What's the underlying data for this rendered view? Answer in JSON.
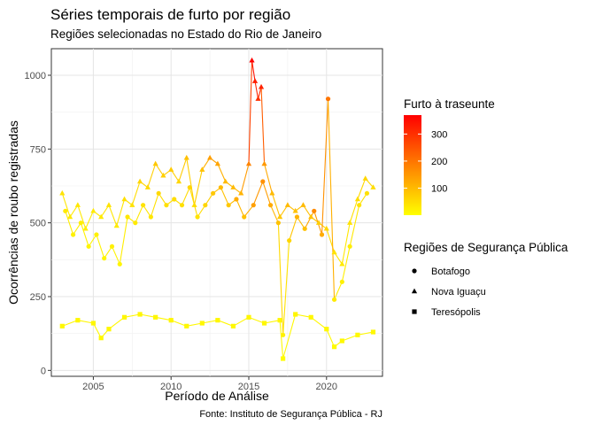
{
  "chart_data": {
    "type": "scatter",
    "title": "Séries temporais de furto por região",
    "subtitle": "Regiões selecionadas no Estado do Rio de Janeiro",
    "xlabel": "Período de Análise",
    "ylabel": "Ocorrências de roubo registradas",
    "caption": "Fonte: Instituto de Segurança Pública - RJ",
    "xlim": [
      2002.3,
      2023.6
    ],
    "ylim": [
      -20,
      1090
    ],
    "x_ticks": [
      "2005",
      "2010",
      "2015",
      "2020"
    ],
    "x_tick_values": [
      2005,
      2010,
      2015,
      2020
    ],
    "y_ticks": [
      "0",
      "250",
      "500",
      "750",
      "1000"
    ],
    "y_tick_values": [
      0,
      250,
      500,
      750,
      1000
    ],
    "grid": true,
    "color_legend": {
      "title": "Furto à traseunte",
      "ticks": [
        "100",
        "200",
        "300"
      ],
      "tick_values": [
        100,
        200,
        300
      ],
      "range": [
        0,
        370
      ],
      "low_color": "#FFFF00",
      "high_color": "#FF0000"
    },
    "shape_legend": {
      "title": "Regiões de Segurança Pública",
      "items": [
        {
          "label": "Botafogo",
          "shape": "circle"
        },
        {
          "label": "Nova Iguaçu",
          "shape": "triangle"
        },
        {
          "label": "Teresópolis",
          "shape": "square"
        }
      ]
    },
    "series": [
      {
        "name": "Nova Iguaçu",
        "shape": "triangle",
        "x": [
          2003.0,
          2003.5,
          2004.0,
          2004.5,
          2005.0,
          2005.5,
          2006.0,
          2006.5,
          2007.0,
          2007.5,
          2008.0,
          2008.5,
          2009.0,
          2009.5,
          2010.0,
          2010.5,
          2011.0,
          2011.5,
          2012.0,
          2012.5,
          2013.0,
          2013.5,
          2014.0,
          2014.5,
          2015.0,
          2015.2,
          2015.4,
          2015.6,
          2015.8,
          2016.0,
          2016.5,
          2017.0,
          2017.5,
          2018.0,
          2018.5,
          2019.0,
          2019.5,
          2020.0,
          2020.5,
          2021.0,
          2021.5,
          2022.0,
          2022.5,
          2023.0
        ],
        "y": [
          600,
          520,
          560,
          480,
          540,
          520,
          560,
          490,
          580,
          560,
          640,
          620,
          700,
          660,
          680,
          640,
          720,
          560,
          680,
          720,
          700,
          640,
          620,
          600,
          700,
          1050,
          980,
          920,
          960,
          700,
          600,
          520,
          560,
          540,
          560,
          520,
          500,
          480,
          400,
          360,
          500,
          580,
          650,
          620
        ],
        "intensity": [
          40,
          30,
          35,
          25,
          30,
          30,
          40,
          30,
          45,
          40,
          60,
          55,
          80,
          70,
          75,
          60,
          90,
          50,
          90,
          140,
          130,
          100,
          100,
          110,
          180,
          370,
          330,
          300,
          320,
          150,
          100,
          80,
          100,
          90,
          100,
          90,
          70,
          60,
          40,
          30,
          40,
          50,
          60,
          50
        ]
      },
      {
        "name": "Botafogo",
        "shape": "circle",
        "x": [
          2003.2,
          2003.7,
          2004.2,
          2004.7,
          2005.2,
          2005.7,
          2006.2,
          2006.7,
          2007.2,
          2007.7,
          2008.2,
          2008.7,
          2009.2,
          2009.7,
          2010.2,
          2010.7,
          2011.2,
          2011.7,
          2012.2,
          2012.7,
          2013.2,
          2013.7,
          2014.2,
          2014.7,
          2015.3,
          2015.9,
          2016.4,
          2016.9,
          2017.2,
          2017.6,
          2018.1,
          2018.6,
          2019.2,
          2019.7,
          2020.1,
          2020.5,
          2021.0,
          2021.5,
          2022.1,
          2022.6
        ],
        "y": [
          540,
          460,
          500,
          420,
          460,
          380,
          420,
          360,
          520,
          500,
          560,
          520,
          600,
          560,
          580,
          560,
          620,
          520,
          560,
          600,
          620,
          560,
          580,
          520,
          560,
          640,
          560,
          500,
          120,
          440,
          520,
          480,
          540,
          460,
          920,
          240,
          300,
          420,
          560,
          600
        ],
        "intensity": [
          30,
          20,
          25,
          15,
          20,
          15,
          20,
          15,
          35,
          30,
          40,
          35,
          55,
          45,
          50,
          45,
          60,
          40,
          60,
          80,
          100,
          80,
          120,
          90,
          140,
          160,
          120,
          90,
          20,
          60,
          110,
          90,
          170,
          120,
          200,
          30,
          20,
          25,
          40,
          45
        ]
      },
      {
        "name": "Teresópolis",
        "shape": "square",
        "x": [
          2003.0,
          2004.0,
          2005.0,
          2005.5,
          2006.0,
          2007.0,
          2008.0,
          2009.0,
          2010.0,
          2011.0,
          2012.0,
          2013.0,
          2014.0,
          2015.0,
          2016.0,
          2017.0,
          2017.2,
          2018.0,
          2019.0,
          2020.0,
          2020.5,
          2021.0,
          2022.0,
          2023.0
        ],
        "y": [
          150,
          170,
          160,
          110,
          140,
          180,
          190,
          180,
          170,
          150,
          160,
          170,
          150,
          180,
          160,
          170,
          40,
          190,
          180,
          140,
          80,
          100,
          120,
          130
        ],
        "intensity": [
          10,
          12,
          11,
          8,
          10,
          12,
          13,
          12,
          12,
          10,
          11,
          12,
          10,
          13,
          11,
          12,
          5,
          13,
          12,
          10,
          6,
          8,
          9,
          10
        ]
      }
    ]
  }
}
